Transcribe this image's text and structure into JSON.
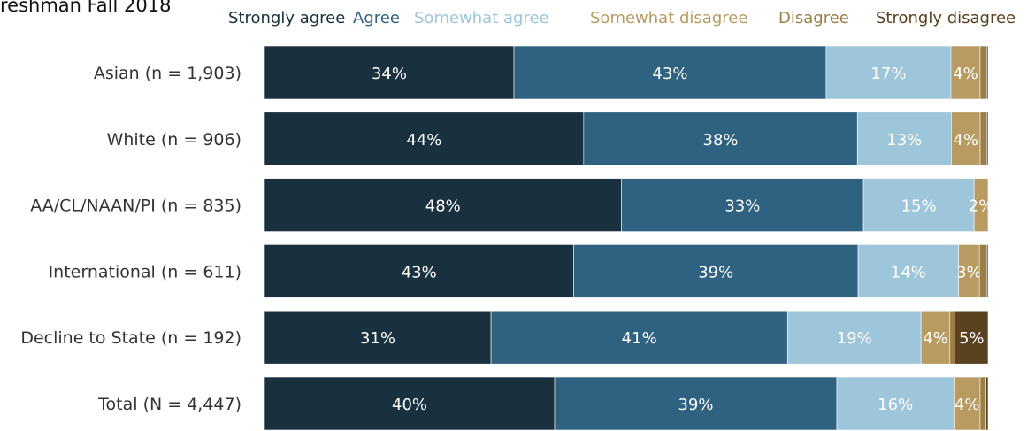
{
  "title": "reshman Fall 2018",
  "chart_data": {
    "type": "bar",
    "orientation": "horizontal",
    "stacked": true,
    "percent_stacked": true,
    "categories": [
      "Asian (n = 1,903)",
      "White (n = 906)",
      "AA/CL/NAAN/PI (n = 835)",
      "International (n = 611)",
      "Decline to State (n = 192)",
      "Total (N = 4,447)"
    ],
    "series": [
      {
        "name": "Strongly agree",
        "color": "#19303f",
        "values": [
          34.2,
          44.2,
          48.4,
          42.8,
          31.4,
          39.9
        ],
        "labels": [
          "34%",
          "44%",
          "48%",
          "43%",
          "31%",
          "40%"
        ]
      },
      {
        "name": "Agree",
        "color": "#2f6280",
        "values": [
          42.8,
          37.9,
          32.8,
          39.4,
          41.1,
          38.8
        ],
        "labels": [
          "43%",
          "38%",
          "33%",
          "39%",
          "41%",
          "39%"
        ]
      },
      {
        "name": "Somewhat agree",
        "color": "#9ec6db",
        "values": [
          17.1,
          13.0,
          15.0,
          13.9,
          18.5,
          16.1
        ],
        "labels": [
          "17%",
          "13%",
          "15%",
          "14%",
          "19%",
          "16%"
        ]
      },
      {
        "name": "Somewhat disagree",
        "color": "#b79b60",
        "values": [
          4.0,
          4.0,
          1.9,
          2.9,
          4.0,
          3.6
        ],
        "labels": [
          "4%",
          "4%",
          "2%",
          "3%",
          "4%",
          "4%"
        ]
      },
      {
        "name": "Disagree",
        "color": "#9c7f45",
        "values": [
          0.9,
          0.9,
          0.0,
          1.0,
          0.7,
          0.8
        ],
        "labels": [
          "",
          "",
          "",
          "",
          "",
          ""
        ]
      },
      {
        "name": "Strongly disagree",
        "color": "#5a4220",
        "values": [
          0.2,
          0.2,
          0.0,
          0.2,
          4.6,
          0.3
        ],
        "labels": [
          "",
          "",
          "",
          "",
          "5%",
          ""
        ]
      }
    ],
    "legend_text_colors": [
      "#19303f",
      "#2f6280",
      "#9ec6db",
      "#b79b60",
      "#9c7f45",
      "#5a4220"
    ],
    "xlim": [
      0,
      100
    ],
    "grid": false,
    "legend_position": "top"
  }
}
